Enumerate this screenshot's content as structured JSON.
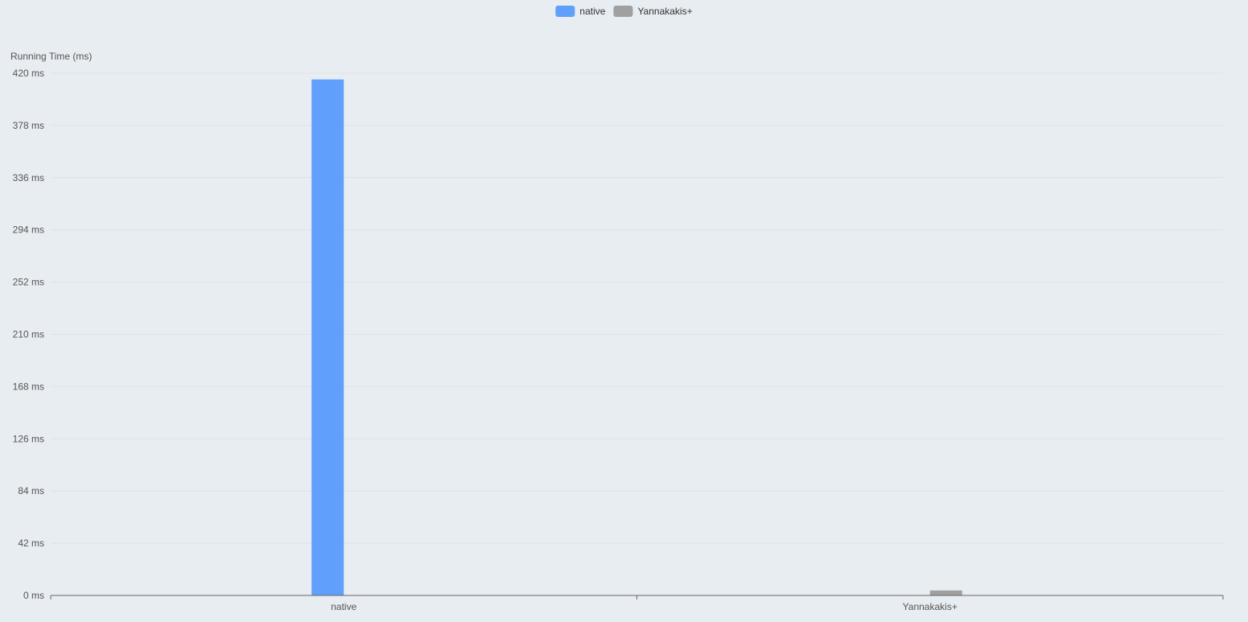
{
  "chart_data": {
    "type": "bar",
    "ylabel": "Running Time (ms)",
    "ylim": [
      0,
      420
    ],
    "yticks": [
      "0 ms",
      "42 ms",
      "84 ms",
      "126 ms",
      "168 ms",
      "210 ms",
      "252 ms",
      "294 ms",
      "336 ms",
      "378 ms",
      "420 ms"
    ],
    "categories": [
      "native",
      "Yannakakis+"
    ],
    "series": [
      {
        "name": "native",
        "color": "#619ffc",
        "values": [
          415,
          0
        ]
      },
      {
        "name": "Yannakakis+",
        "color": "#a0a0a0",
        "values": [
          0,
          4
        ]
      }
    ],
    "grid": true,
    "legend_position": "top-center"
  }
}
